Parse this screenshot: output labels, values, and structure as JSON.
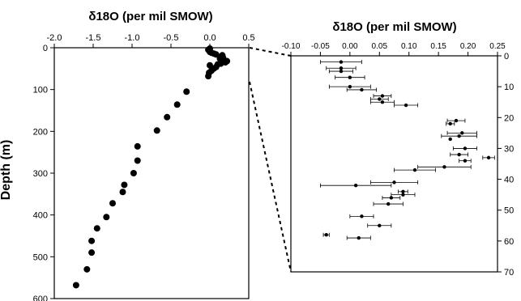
{
  "chart_data": [
    {
      "type": "scatter",
      "title": "δ18O (per mil SMOW)",
      "xlabel": "δ18O (per mil SMOW)",
      "ylabel": "Depth (m)",
      "xlim": [
        -2.0,
        0.5
      ],
      "ylim": [
        0,
        600
      ],
      "y_inverted": true,
      "x_axis_position": "top",
      "x_ticks": [
        "-2.0",
        "-1.5",
        "-1.0",
        "-0.5",
        "0.0",
        "0.5"
      ],
      "y_ticks": [
        "0",
        "100",
        "200",
        "300",
        "400",
        "500",
        "600"
      ],
      "grid": false,
      "points": [
        {
          "x": -1.72,
          "y": 568
        },
        {
          "x": -1.58,
          "y": 530
        },
        {
          "x": -1.52,
          "y": 490
        },
        {
          "x": -1.52,
          "y": 462
        },
        {
          "x": -1.45,
          "y": 432
        },
        {
          "x": -1.33,
          "y": 405
        },
        {
          "x": -1.25,
          "y": 372
        },
        {
          "x": -1.12,
          "y": 345
        },
        {
          "x": -1.1,
          "y": 328
        },
        {
          "x": -0.98,
          "y": 300
        },
        {
          "x": -0.93,
          "y": 270
        },
        {
          "x": -0.93,
          "y": 236
        },
        {
          "x": -0.68,
          "y": 198
        },
        {
          "x": -0.55,
          "y": 166
        },
        {
          "x": -0.42,
          "y": 136
        },
        {
          "x": -0.3,
          "y": 105
        },
        {
          "x": -0.02,
          "y": 68
        },
        {
          "x": -0.01,
          "y": 60
        },
        {
          "x": 0.02,
          "y": 55
        },
        {
          "x": 0.05,
          "y": 50
        },
        {
          "x": 0.08,
          "y": 46
        },
        {
          "x": 0.0,
          "y": 42
        },
        {
          "x": 0.1,
          "y": 40
        },
        {
          "x": 0.14,
          "y": 38
        },
        {
          "x": 0.2,
          "y": 35
        },
        {
          "x": 0.22,
          "y": 32
        },
        {
          "x": 0.18,
          "y": 30
        },
        {
          "x": 0.15,
          "y": 28
        },
        {
          "x": 0.13,
          "y": 26
        },
        {
          "x": 0.17,
          "y": 24
        },
        {
          "x": 0.16,
          "y": 18
        },
        {
          "x": 0.08,
          "y": 16
        },
        {
          "x": 0.05,
          "y": 14
        },
        {
          "x": 0.02,
          "y": 12
        },
        {
          "x": 0.0,
          "y": 10
        },
        {
          "x": -0.02,
          "y": 5
        },
        {
          "x": 0.0,
          "y": 2
        }
      ]
    },
    {
      "type": "scatter",
      "title": "δ18O (per mil SMOW)",
      "xlabel": "δ18O (per mil SMOW)",
      "ylabel": "",
      "xlim": [
        -0.1,
        0.25
      ],
      "ylim": [
        0,
        70
      ],
      "y_inverted": true,
      "x_axis_position": "top",
      "y_axis_position": "right",
      "x_ticks": [
        "-0.10",
        "-0.05",
        "0.00",
        "0.05",
        "0.10",
        "0.15",
        "0.20",
        "0.25"
      ],
      "y_ticks": [
        "0",
        "10",
        "20",
        "30",
        "40",
        "50",
        "60",
        "70"
      ],
      "grid": false,
      "error_bars": "horizontal",
      "points": [
        {
          "x": -0.015,
          "y": 2,
          "err": 0.035
        },
        {
          "x": -0.015,
          "y": 4,
          "err": 0.025
        },
        {
          "x": -0.015,
          "y": 5,
          "err": 0.02
        },
        {
          "x": 0.0,
          "y": 7,
          "err": 0.025
        },
        {
          "x": 0.0,
          "y": 10,
          "err": 0.035
        },
        {
          "x": 0.02,
          "y": 11,
          "err": 0.025
        },
        {
          "x": 0.055,
          "y": 13,
          "err": 0.015
        },
        {
          "x": 0.05,
          "y": 14,
          "err": 0.015
        },
        {
          "x": 0.055,
          "y": 15,
          "err": 0.02
        },
        {
          "x": 0.095,
          "y": 16,
          "err": 0.02
        },
        {
          "x": 0.18,
          "y": 21,
          "err": 0.015
        },
        {
          "x": 0.17,
          "y": 22,
          "err": 0.007
        },
        {
          "x": 0.19,
          "y": 25,
          "err": 0.025
        },
        {
          "x": 0.185,
          "y": 26,
          "err": 0.03
        },
        {
          "x": 0.17,
          "y": 27,
          "err": 0.0
        },
        {
          "x": 0.195,
          "y": 30,
          "err": 0.02
        },
        {
          "x": 0.185,
          "y": 32,
          "err": 0.015
        },
        {
          "x": 0.235,
          "y": 33,
          "err": 0.01
        },
        {
          "x": 0.195,
          "y": 34,
          "err": 0.01
        },
        {
          "x": 0.16,
          "y": 36,
          "err": 0.045
        },
        {
          "x": 0.11,
          "y": 37,
          "err": 0.035
        },
        {
          "x": 0.075,
          "y": 41,
          "err": 0.04
        },
        {
          "x": 0.01,
          "y": 42,
          "err": 0.06
        },
        {
          "x": 0.09,
          "y": 44,
          "err": 0.008
        },
        {
          "x": 0.09,
          "y": 45,
          "err": 0.02
        },
        {
          "x": 0.07,
          "y": 46,
          "err": 0.015
        },
        {
          "x": 0.065,
          "y": 48,
          "err": 0.025
        },
        {
          "x": 0.02,
          "y": 52,
          "err": 0.02
        },
        {
          "x": 0.05,
          "y": 55,
          "err": 0.02
        },
        {
          "x": -0.04,
          "y": 58,
          "err": 0.005
        },
        {
          "x": 0.015,
          "y": 59,
          "err": 0.02
        }
      ]
    }
  ]
}
